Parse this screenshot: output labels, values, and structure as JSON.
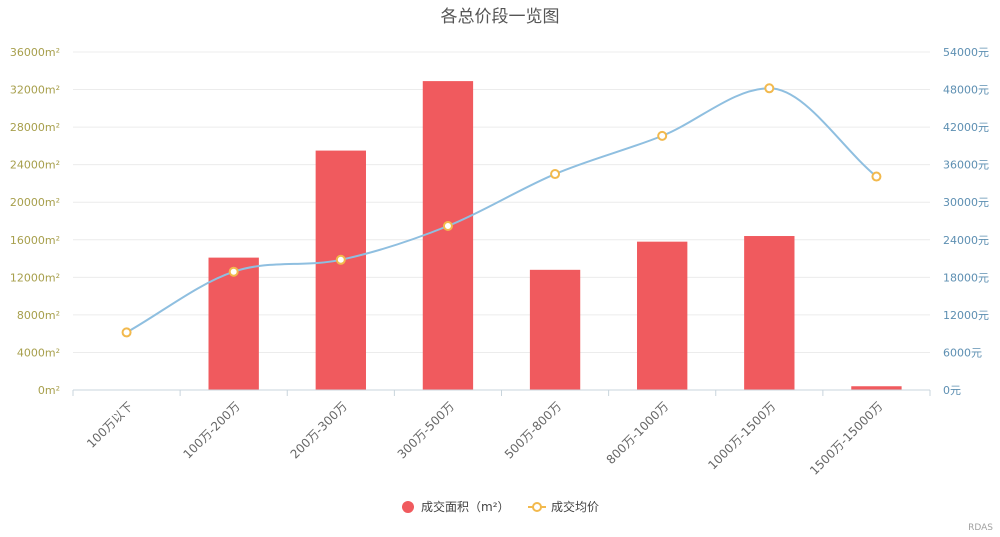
{
  "chart_data": {
    "type": "bar",
    "title": "各总价段一览图",
    "categories": [
      "100万以下",
      "100万-200万",
      "200万-300万",
      "300万-500万",
      "500万-800万",
      "800万-1000万",
      "1000万-1500万",
      "1500万-15000万"
    ],
    "series": [
      {
        "name": "成交面积（m²）",
        "type": "bar",
        "axis": "left",
        "color": "#f05a5e",
        "values": [
          0,
          14100,
          25500,
          32900,
          12800,
          15800,
          16400,
          400
        ]
      },
      {
        "name": "成交均价",
        "type": "line",
        "smooth": true,
        "axis": "right",
        "color": "#8fbfe0",
        "marker_color": "#f2b94d",
        "values": [
          9200,
          18900,
          20800,
          26200,
          34500,
          40600,
          48200,
          34100
        ]
      }
    ],
    "y_left": {
      "ylim": [
        0,
        36000
      ],
      "ticks": [
        "0m²",
        "4000m²",
        "8000m²",
        "12000m²",
        "16000m²",
        "20000m²",
        "24000m²",
        "28000m²",
        "32000m²",
        "36000m²"
      ]
    },
    "y_right": {
      "ylim": [
        0,
        54000
      ],
      "ticks": [
        "0元",
        "6000元",
        "12000元",
        "18000元",
        "24000元",
        "30000元",
        "36000元",
        "42000元",
        "48000元",
        "54000元"
      ]
    },
    "grid": true,
    "legend_position": "bottom-center",
    "watermark": "RDAS"
  }
}
